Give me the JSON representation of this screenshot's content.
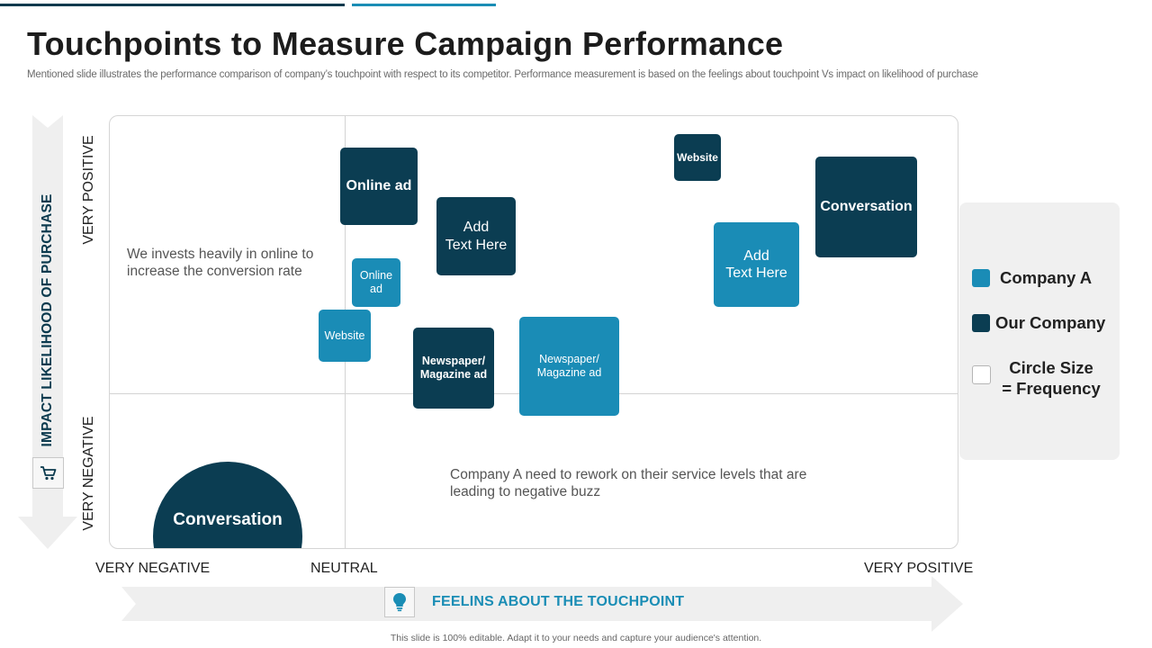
{
  "slide": {
    "title": "Touchpoints to Measure Campaign Performance",
    "subtitle": "Mentioned slide illustrates the performance comparison of company’s touchpoint with respect to its competitor. Performance measurement is based on the feelings about touchpoint Vs impact on likelihood of purchase",
    "footer": "This slide is 100% editable.  Adapt it to your needs and capture your audience's attention."
  },
  "y_axis": {
    "title": "IMPACT LIKELIHOOD OF PURCHASE",
    "top_label": "VERY POSITIVE",
    "bottom_label": "VERY NEGATIVE",
    "icon": "shopping-cart-icon"
  },
  "x_axis": {
    "title": "FEELINS ABOUT THE TOUCHPOINT",
    "left_label": "VERY NEGATIVE",
    "center_label": "NEUTRAL",
    "right_label": "VERY POSITIVE",
    "icon": "lightbulb-icon"
  },
  "notes": {
    "upper_left_line1": "We invests heavily in online to",
    "upper_left_line2": "increase the conversion rate",
    "lower_right_line1": "Company A need to rework on their service levels that are",
    "lower_right_line2": "leading to negative buzz"
  },
  "touchpoints": {
    "our_online_ad": "Online ad",
    "our_add_text": "Add\nText Here",
    "our_website": "Website",
    "our_conversation": "Conversation",
    "our_newspaper": "Newspaper/\nMagazine ad",
    "our_conversation_circle": "Conversation",
    "compa_online_ad": "Online\nad",
    "compa_website": "Website",
    "compa_newspaper": "Newspaper/\nMagazine ad",
    "compa_add_text": "Add\nText Here"
  },
  "legend": {
    "company_a": "Company A",
    "our_company": "Our Company",
    "size_line1": "Circle Size",
    "size_line2": "= Frequency"
  },
  "colors": {
    "our_company": "#0b3d52",
    "company_a": "#1a8cb6",
    "axis_title_vertical": "#0b3a4e",
    "axis_title_horizontal": "#1a8db5"
  }
}
